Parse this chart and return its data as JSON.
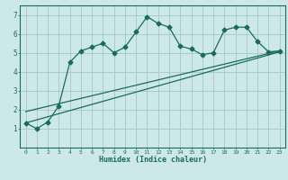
{
  "xlabel": "Humidex (Indice chaleur)",
  "ylabel": "",
  "background_color": "#cce8e8",
  "grid_color": "#aacccc",
  "line_color": "#1a6b5a",
  "xlim": [
    -0.5,
    23.5
  ],
  "ylim": [
    0,
    7.5
  ],
  "xticks": [
    0,
    1,
    2,
    3,
    4,
    5,
    6,
    7,
    8,
    9,
    10,
    11,
    12,
    13,
    14,
    15,
    16,
    17,
    18,
    19,
    20,
    21,
    22,
    23
  ],
  "yticks": [
    1,
    2,
    3,
    4,
    5,
    6,
    7
  ],
  "main_x": [
    0,
    1,
    2,
    3,
    4,
    5,
    6,
    7,
    8,
    9,
    10,
    11,
    12,
    13,
    14,
    15,
    16,
    17,
    18,
    19,
    20,
    21,
    22,
    23
  ],
  "main_y": [
    1.3,
    1.0,
    1.35,
    2.2,
    4.5,
    5.1,
    5.3,
    5.5,
    5.0,
    5.3,
    6.1,
    6.9,
    6.55,
    6.35,
    5.35,
    5.2,
    4.9,
    5.0,
    6.2,
    6.35,
    6.35,
    5.6,
    5.05,
    5.1
  ],
  "trend1_x": [
    0,
    23
  ],
  "trend1_y": [
    1.3,
    5.05
  ],
  "trend2_x": [
    0,
    23
  ],
  "trend2_y": [
    1.9,
    5.1
  ]
}
